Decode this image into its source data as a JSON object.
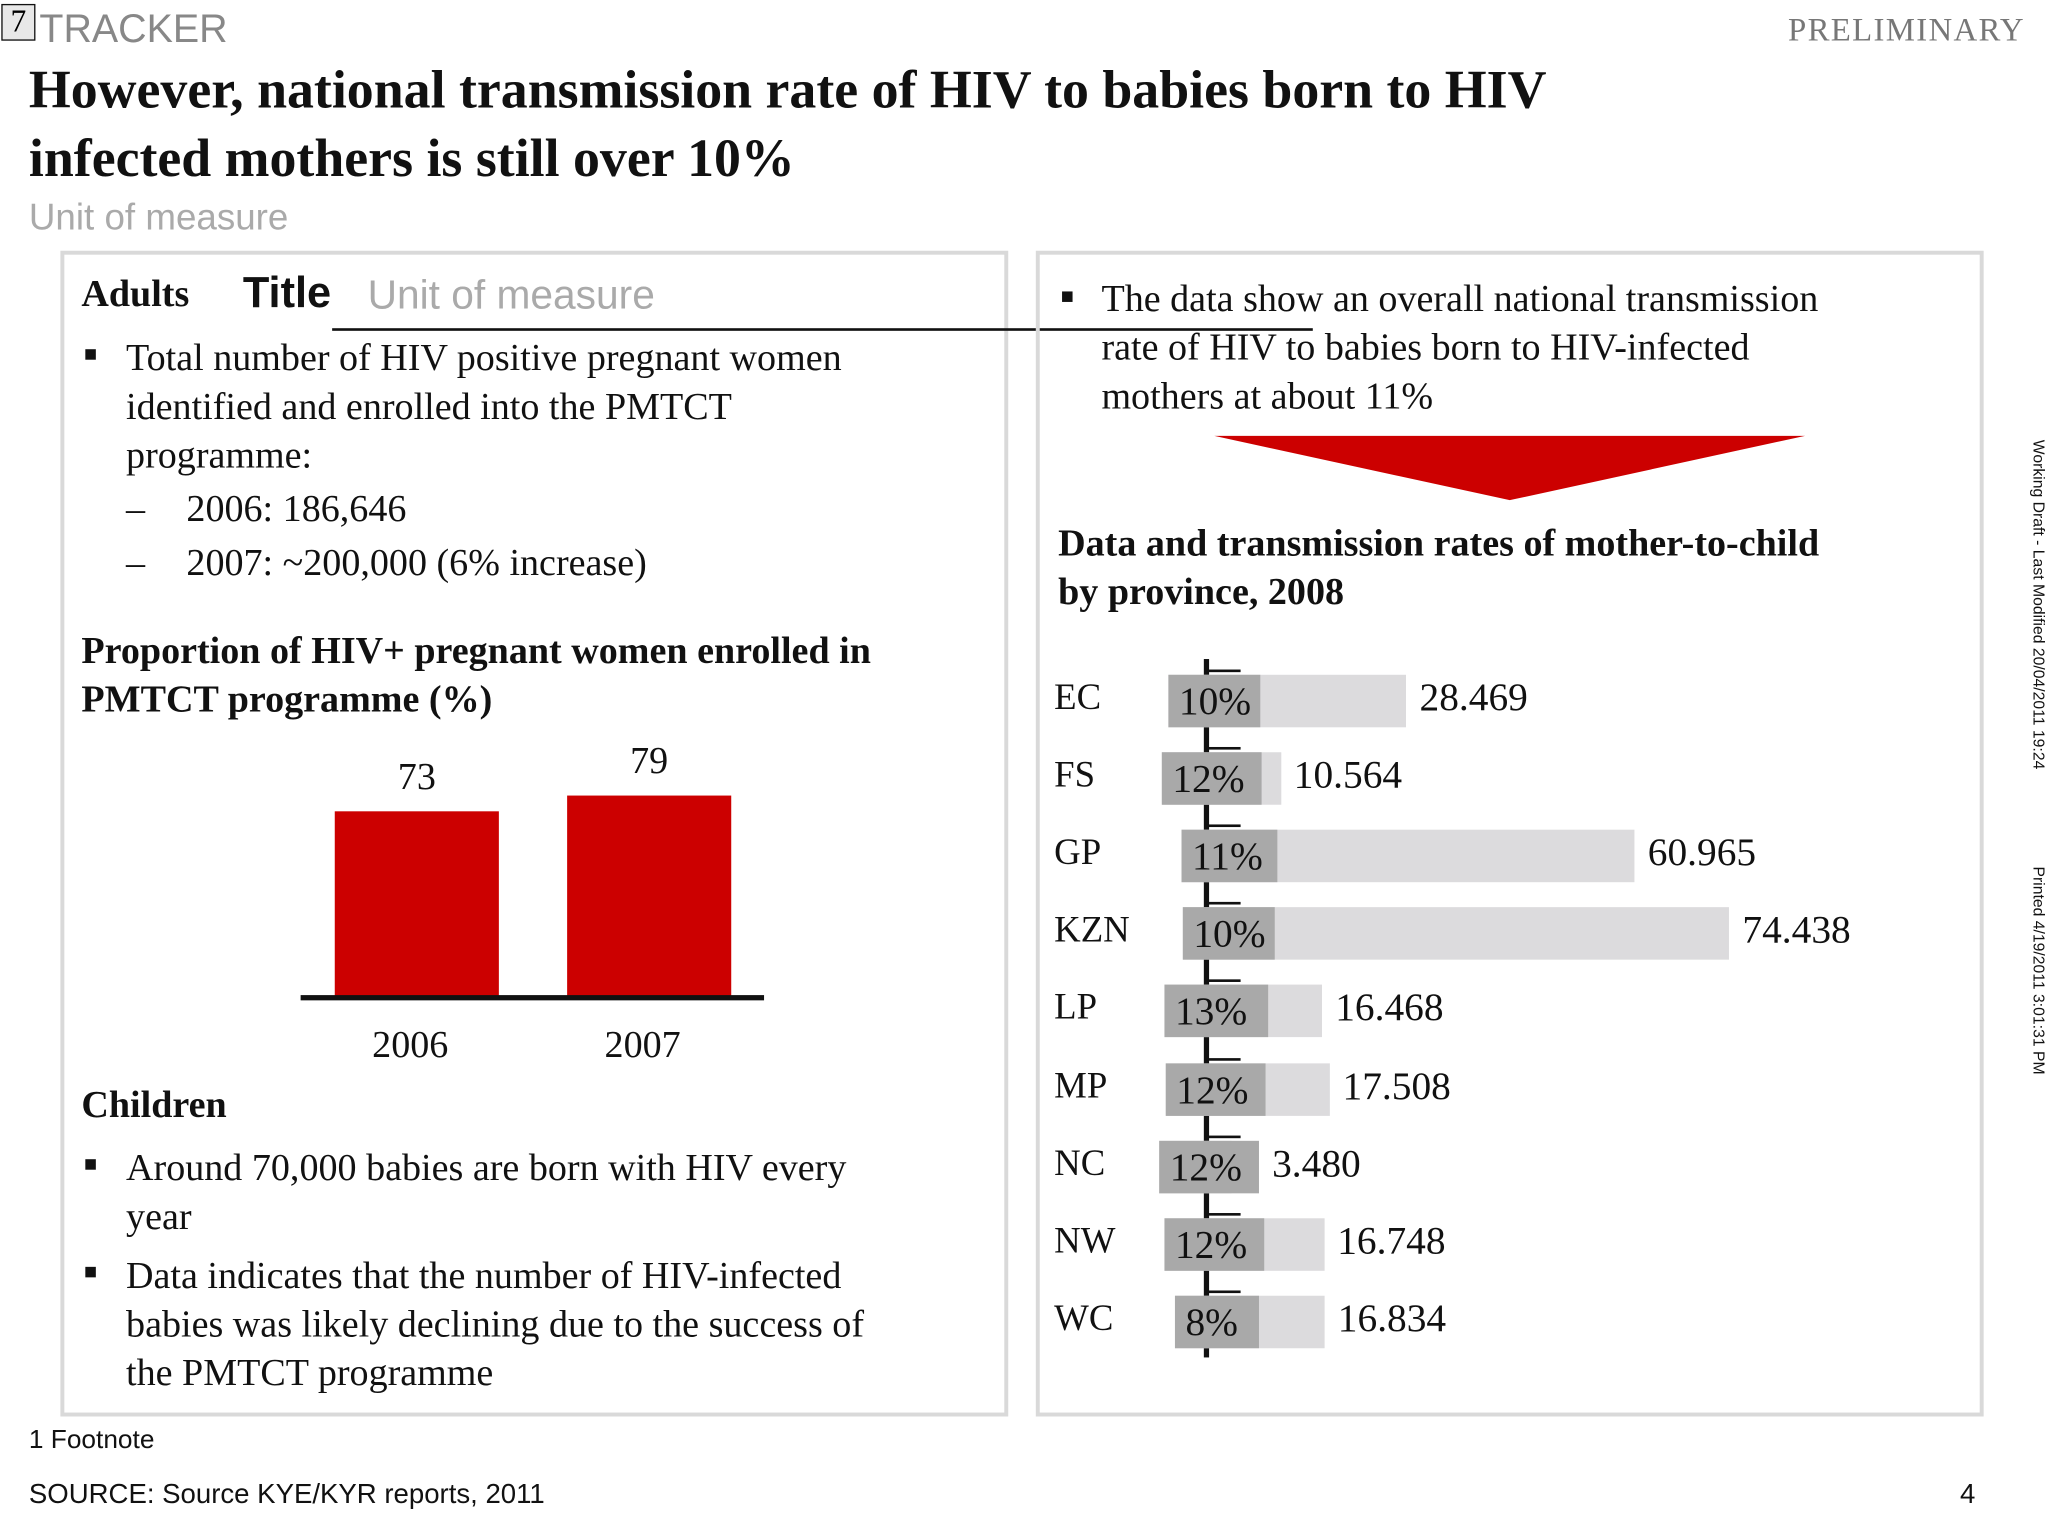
{
  "header": {
    "page_badge": "7",
    "tracker": "TRACKER",
    "title": "However, national transmission rate of HIV to babies born to HIV infected mothers is still over 10%",
    "title_line1": "However, national transmission rate of HIV to babies born to HIV",
    "title_line2": "infected mothers is still over 10%",
    "unit_ghost": "Unit of measure",
    "status": "PRELIMINARY"
  },
  "left_panel": {
    "adults_heading": "Adults",
    "ghost_title": "Title",
    "ghost_unit": "Unit of measure",
    "adult_bullet_lines": [
      "Total number of HIV positive pregnant women",
      "identified and enrolled into the PMTCT",
      "programme:"
    ],
    "sub_items": [
      "2006: 186,646",
      "2007: ~200,000 (6% increase)"
    ],
    "dash": "–",
    "chart_title_lines": [
      "Proportion of HIV+ pregnant women enrolled in",
      "PMTCT programme (%)"
    ],
    "children_heading": "Children",
    "children_bullets": [
      {
        "lines": [
          "Around 70,000 babies are born with HIV every",
          "year"
        ]
      },
      {
        "lines": [
          "Data indicates that the number of HIV-infected",
          "babies was likely declining due to the success of",
          "the PMTCT programme"
        ]
      }
    ]
  },
  "right_panel": {
    "bullet_lines": [
      "The data show an overall national transmission",
      "rate of HIV to babies born to HIV-infected",
      "mothers at about 11%"
    ],
    "chart_title_lines": [
      "Data and transmission rates of mother-to-child",
      "by province, 2008"
    ]
  },
  "chart_data": [
    {
      "type": "bar",
      "title": "Proportion of HIV+ pregnant women enrolled in PMTCT programme (%)",
      "categories": [
        "2006",
        "2007"
      ],
      "values": [
        73,
        79
      ],
      "value_labels": [
        "73",
        "79"
      ],
      "color": "#cc0000",
      "grid": false
    },
    {
      "type": "bar",
      "orientation": "horizontal",
      "title": "Data and transmission rates of mother-to-child by province, 2008",
      "categories": [
        "EC",
        "FS",
        "GP",
        "KZN",
        "LP",
        "MP",
        "NC",
        "NW",
        "WC"
      ],
      "series": [
        {
          "values": [
            28.469,
            10.564,
            60.965,
            74.438,
            16.468,
            17.508,
            3.48,
            16.748,
            16.834
          ],
          "labels": [
            "28.469",
            "10.564",
            "60.965",
            "74.438",
            "16.468",
            "17.508",
            "3.480",
            "16.748",
            "16.834"
          ],
          "color": "#dcdbdd"
        },
        {
          "values": [
            10,
            12,
            11,
            10,
            13,
            12,
            12,
            12,
            8
          ],
          "labels": [
            "10%",
            "12%",
            "11%",
            "10%",
            "13%",
            "12%",
            "12%",
            "12%",
            "8%"
          ],
          "color": "#a9a9a9"
        }
      ],
      "grid": false
    }
  ],
  "colors": {
    "accent": "#cc0000",
    "panel_border": "#d9d9d9"
  },
  "footer": {
    "footnote": "1 Footnote",
    "source_prefix": "SOURCE: ",
    "source_ghost": "Source",
    "source_text": "KYE/KYR reports, 2011",
    "page_number": "4",
    "side_note": "Working Draft - Last Modified 20/04/2011 19:24",
    "side_note_printed": "Printed 4/19/2011 3:01:31 PM"
  }
}
